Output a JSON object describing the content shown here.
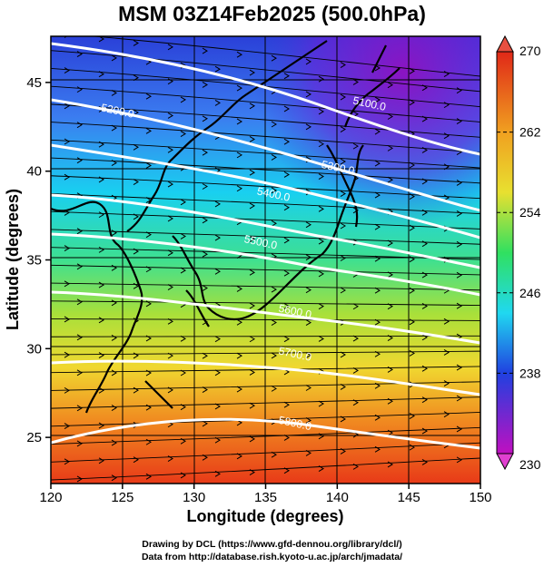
{
  "title": "MSM 03Z14Feb2025 (500.0hPa)",
  "xaxis": {
    "label": "Longitude (degrees)",
    "ticks": [
      120,
      125,
      130,
      135,
      140,
      145,
      150
    ],
    "range": [
      120,
      150
    ]
  },
  "yaxis": {
    "label": "Latitude (degrees)",
    "ticks": [
      25,
      30,
      35,
      40,
      45
    ],
    "range": [
      22.4,
      47.6
    ]
  },
  "colorbar": {
    "ticks": [
      "270",
      "262",
      "254",
      "246",
      "238",
      "230"
    ],
    "min": 230,
    "max": 270
  },
  "contours": [
    {
      "label": "5100.0",
      "lon": 142.2,
      "lat": 43.6
    },
    {
      "label": "5200.0",
      "lon": 124.6,
      "lat": 43.2
    },
    {
      "label": "5300.0",
      "lon": 140.0,
      "lat": 40.0
    },
    {
      "label": "5400.0",
      "lon": 135.5,
      "lat": 38.5
    },
    {
      "label": "5500.0",
      "lon": 134.6,
      "lat": 35.8
    },
    {
      "label": "5600.0",
      "lon": 137.0,
      "lat": 31.9
    },
    {
      "label": "5700.0",
      "lon": 137.0,
      "lat": 29.5
    },
    {
      "label": "5800.0",
      "lon": 137.0,
      "lat": 25.6
    }
  ],
  "footer": {
    "line1": "Drawing by DCL (https://www.gfd-dennou.org/library/dcl/)",
    "line2": "Data from http://database.rish.kyoto-u.ac.jp/arch/jmadata/"
  }
}
